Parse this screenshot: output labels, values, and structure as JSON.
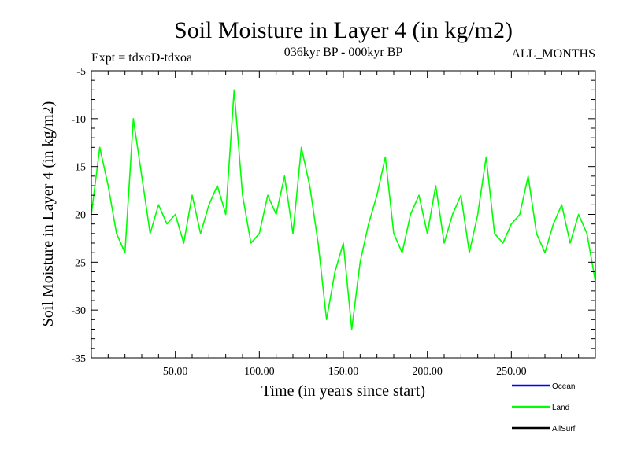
{
  "chart_data": {
    "type": "line",
    "title": "Soil Moisture in Layer 4 (in kg/m2)",
    "subtitle": "036kyr BP - 000kyr BP",
    "left_annotation": "Expt = tdxoD-tdxoa",
    "right_annotation": "ALL_MONTHS",
    "xlabel": "Time (in years since start)",
    "ylabel": "Soil Moisture in Layer 4 (in kg/m2)",
    "xlim": [
      0,
      300
    ],
    "ylim": [
      -35,
      -5
    ],
    "x_ticks": [
      50,
      100,
      150,
      200,
      250
    ],
    "x_tick_labels": [
      "50.00",
      "100.00",
      "150.00",
      "200.00",
      "250.00"
    ],
    "y_ticks": [
      -35,
      -30,
      -25,
      -20,
      -15,
      -10,
      -5
    ],
    "y_tick_labels": [
      "-35",
      "-30",
      "-25",
      "-20",
      "-15",
      "-10",
      "-5"
    ],
    "grid": false,
    "legend_position": "bottom-right",
    "legend": [
      {
        "name": "Ocean",
        "color": "#0000ff"
      },
      {
        "name": "Land",
        "color": "#00ff00"
      },
      {
        "name": "AllSurf",
        "color": "#000000"
      }
    ],
    "series": [
      {
        "name": "Land",
        "color": "#00ff00",
        "x": [
          0,
          5,
          10,
          15,
          20,
          25,
          30,
          35,
          40,
          45,
          50,
          55,
          60,
          65,
          70,
          75,
          80,
          85,
          90,
          95,
          100,
          105,
          110,
          115,
          120,
          125,
          130,
          135,
          140,
          145,
          150,
          155,
          160,
          165,
          170,
          175,
          180,
          185,
          190,
          195,
          200,
          205,
          210,
          215,
          220,
          225,
          230,
          235,
          240,
          245,
          250,
          255,
          260,
          265,
          270,
          275,
          280,
          285,
          290,
          295,
          300
        ],
        "y": [
          -20,
          -13,
          -17,
          -22,
          -24,
          -10,
          -16,
          -22,
          -19,
          -21,
          -20,
          -23,
          -18,
          -22,
          -19,
          -17,
          -20,
          -7,
          -18,
          -23,
          -22,
          -18,
          -20,
          -16,
          -22,
          -13,
          -17,
          -23,
          -31,
          -26,
          -23,
          -32,
          -25,
          -21,
          -18,
          -14,
          -22,
          -24,
          -20,
          -18,
          -22,
          -17,
          -23,
          -20,
          -18,
          -24,
          -20,
          -14,
          -22,
          -23,
          -21,
          -20,
          -16,
          -22,
          -24,
          -21,
          -19,
          -23,
          -20,
          -22,
          -27
        ]
      }
    ]
  }
}
